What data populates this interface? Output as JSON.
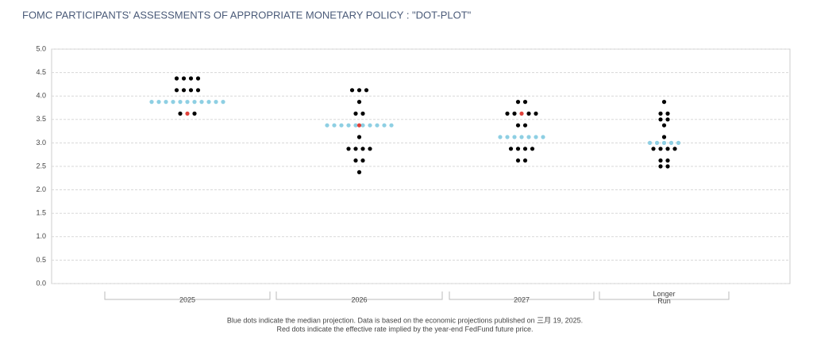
{
  "chart_data": {
    "type": "dot",
    "title": "FOMC PARTICIPANTS' ASSESSMENTS OF APPROPRIATE MONETARY POLICY : \"DOT-PLOT\"",
    "categories": [
      "2025",
      "2026",
      "2027",
      "Longer Run"
    ],
    "ylim": [
      0,
      5
    ],
    "yticks": [
      {
        "value": 0,
        "label": "0.0"
      },
      {
        "value": 0.5,
        "label": "0.5"
      },
      {
        "value": 1,
        "label": "1.0"
      },
      {
        "value": 1.5,
        "label": "1.5"
      },
      {
        "value": 2,
        "label": "2.0"
      },
      {
        "value": 2.5,
        "label": "2.5"
      },
      {
        "value": 3,
        "label": "3.0"
      },
      {
        "value": 3.5,
        "label": "3.5"
      },
      {
        "value": 4,
        "label": "4.0"
      },
      {
        "value": 4.5,
        "label": "4.5"
      },
      {
        "value": 5,
        "label": "5.0"
      }
    ],
    "grid": true,
    "dot_color": "#000000",
    "median_color": "#8ecfe3",
    "futures_color": "#e0413a",
    "dots": [
      {
        "levels": [
          4.375,
          4.125,
          3.625
        ],
        "counts": [
          4,
          4,
          2
        ]
      },
      {
        "levels": [
          4.125,
          3.875,
          3.625,
          3.125,
          2.875,
          2.625,
          2.375
        ],
        "counts": [
          3,
          1,
          2,
          1,
          4,
          2,
          1
        ]
      },
      {
        "levels": [
          3.875,
          3.625,
          3.375,
          2.875,
          2.625
        ],
        "counts": [
          2,
          4,
          2,
          4,
          2
        ]
      },
      {
        "levels": [
          3.875,
          3.625,
          3.5,
          3.375,
          3.125,
          2.875,
          2.625,
          2.5
        ],
        "counts": [
          1,
          2,
          2,
          1,
          1,
          4,
          2,
          2
        ]
      }
    ],
    "median": [
      3.875,
      3.375,
      3.125,
      3.0
    ],
    "median_counts": [
      11,
      10,
      7,
      5
    ],
    "futures": [
      3.625,
      3.375,
      3.625,
      null
    ],
    "notes": [
      "Blue dots indicate the median projection. Data is based on the economic projections published on 三月 19, 2025.",
      "Red dots indicate the effective rate implied by the year-end FedFund future price."
    ]
  }
}
